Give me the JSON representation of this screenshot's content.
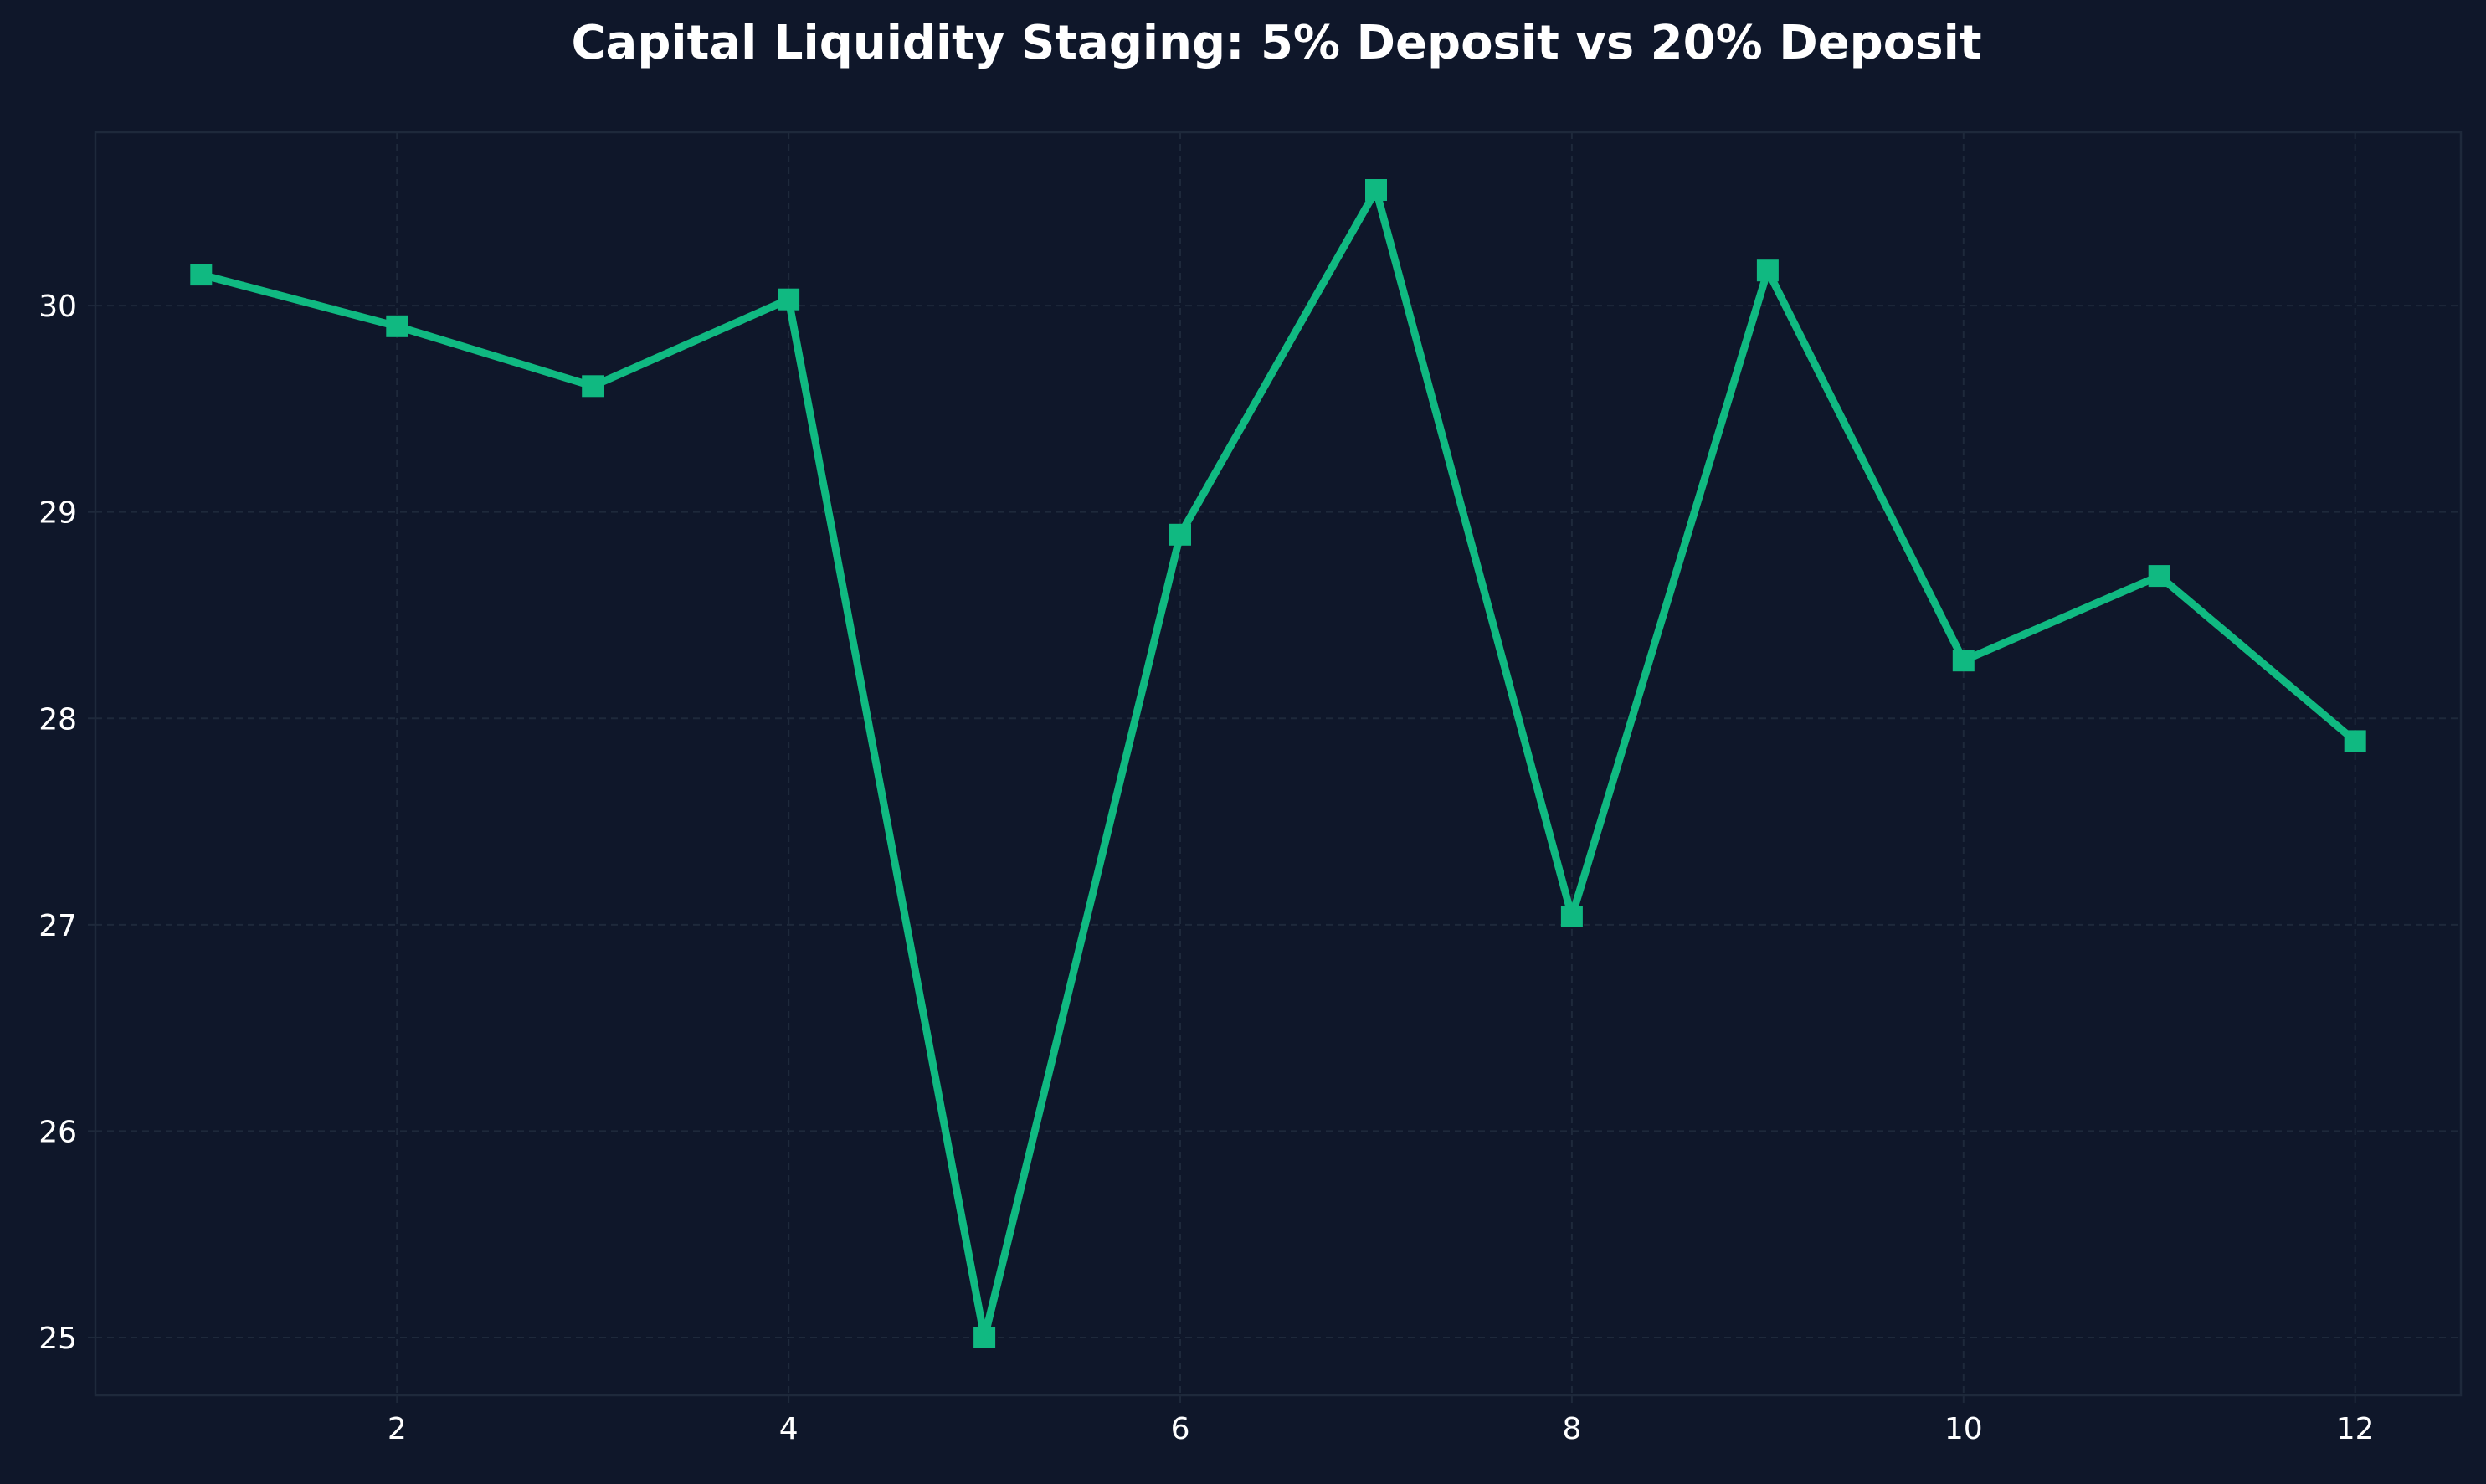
{
  "colors": {
    "background": "#0f172a",
    "plot_background": "#0f172a",
    "axes_edge": "#1e293b",
    "grid": "#1e293b",
    "text": "#ffffff",
    "series_line": "#10b981",
    "series_marker": "#10b981"
  },
  "chart_data": {
    "type": "line",
    "title": "Capital Liquidity Staging: 5% Deposit vs 20% Deposit",
    "xlabel": "",
    "ylabel": "",
    "grid": true,
    "grid_style": "dashed",
    "xlim": [
      0.46,
      12.54
    ],
    "ylim": [
      24.72,
      30.84
    ],
    "x_ticks": [
      2,
      4,
      6,
      8,
      10,
      12
    ],
    "x_tick_labels": [
      "2",
      "4",
      "6",
      "8",
      "10",
      "12"
    ],
    "y_ticks": [
      25,
      26,
      27,
      28,
      29,
      30
    ],
    "y_tick_labels": [
      "25",
      "26",
      "27",
      "28",
      "29",
      "30"
    ],
    "marker": "square",
    "series": [
      {
        "x": [
          1,
          2,
          3,
          4,
          5,
          6,
          7,
          8,
          9,
          10,
          11,
          12
        ],
        "values": [
          30.15,
          29.9,
          29.61,
          30.03,
          25.0,
          28.89,
          30.56,
          27.04,
          30.17,
          28.28,
          28.69,
          27.89
        ]
      }
    ]
  }
}
